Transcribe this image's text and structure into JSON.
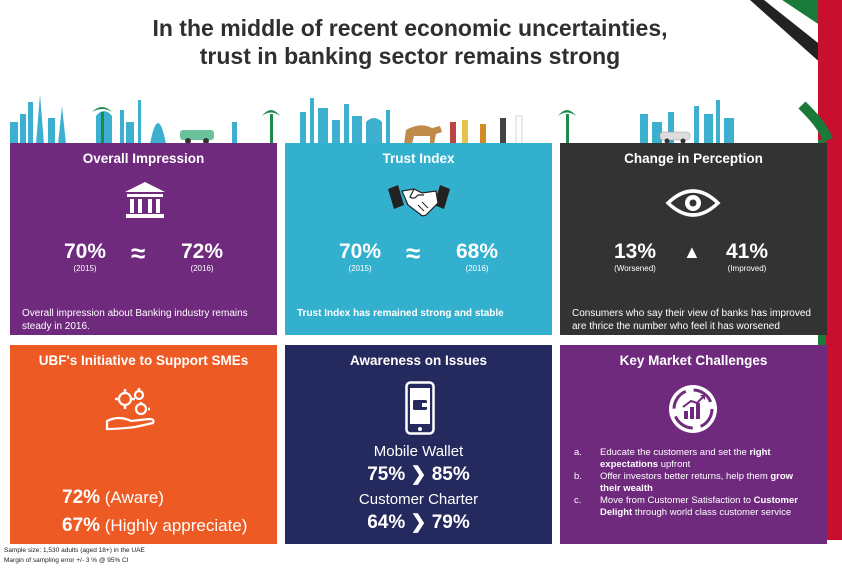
{
  "title": {
    "line1": "In the middle of recent economic uncertainties,",
    "line2": "trust in banking sector remains strong"
  },
  "colors": {
    "purple": "#6f2a7e",
    "teal": "#34b0cf",
    "dark": "#333333",
    "orange": "#ee5a24",
    "navy": "#252a5e",
    "skyline": "#3db0cf",
    "flag_red": "#c8102e",
    "flag_green": "#1a7a3a"
  },
  "overall": {
    "heading": "Overall Impression",
    "icon": "bank-icon",
    "v1": "70%",
    "y1": "(2015)",
    "approx": "≈",
    "v2": "72%",
    "y2": "(2016)",
    "desc": "Overall impression about Banking industry remains steady in 2016."
  },
  "trust": {
    "heading": "Trust Index",
    "icon": "handshake-icon",
    "v1": "70%",
    "y1": "(2015)",
    "approx": "≈",
    "v2": "68%",
    "y2": "(2016)",
    "desc": "Trust Index has remained strong and stable"
  },
  "perception": {
    "heading": "Change in Perception",
    "icon": "eye-icon",
    "v1": "13%",
    "y1": "(Worsened)",
    "arrow": "▲",
    "v2": "41%",
    "y2": "(Improved)",
    "desc": "Consumers who say their view of banks has improved are thrice the number who feel it has worsened"
  },
  "sme": {
    "heading": "UBF's Initiative to Support SMEs",
    "icon": "gears-hand-icon",
    "row1_value": "72%",
    "row1_label": "(Aware)",
    "row2_value": "67%",
    "row2_label": "(Highly appreciate)"
  },
  "awareness": {
    "heading": "Awareness on Issues",
    "icon": "mobile-wallet-icon",
    "item1_label": "Mobile Wallet",
    "item1_values": "75% ❯ 85%",
    "item2_label": "Customer Charter",
    "item2_values": "64% ❯ 79%"
  },
  "challenges": {
    "heading": "Key Market Challenges",
    "icon": "growth-cycle-icon",
    "items": [
      {
        "n": "a.",
        "pre": "Educate the customers and set the ",
        "bold": "right expectations",
        "post": " upfront"
      },
      {
        "n": "b.",
        "pre": "Offer investors better returns, help them ",
        "bold": "grow their wealth",
        "post": ""
      },
      {
        "n": "c.",
        "pre": "Move from Customer Satisfaction to ",
        "bold": "Customer Delight",
        "post": " through world class customer service"
      }
    ]
  },
  "footnote": {
    "line1": "Sample size: 1,530 adults (aged 18+) in the UAE",
    "line2": "Margin of sampling error +/- 3 % @ 95% CI"
  }
}
